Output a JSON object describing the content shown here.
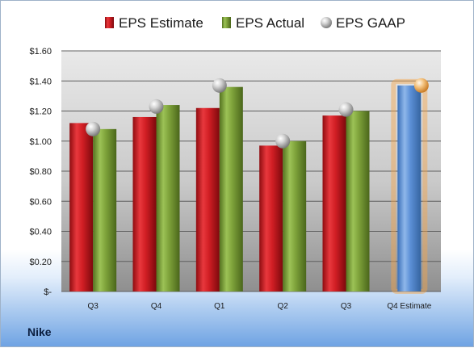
{
  "company": "Nike",
  "chart_data": {
    "type": "bar",
    "categories": [
      "Q3",
      "Q4",
      "Q1",
      "Q2",
      "Q3",
      "Q4 Estimate"
    ],
    "series": [
      {
        "name": "EPS Estimate",
        "color": "#c8161d",
        "values": [
          1.12,
          1.16,
          1.22,
          0.97,
          1.17,
          null
        ]
      },
      {
        "name": "EPS Actual",
        "color": "#7ea23a",
        "values": [
          1.08,
          1.24,
          1.36,
          1.0,
          1.2,
          null
        ]
      },
      {
        "name": "EPS GAAP",
        "color": "#b0b0b0",
        "marker": "sphere",
        "values": [
          1.08,
          1.23,
          1.37,
          1.0,
          1.21,
          1.37
        ]
      }
    ],
    "estimate_bar": {
      "category": "Q4 Estimate",
      "value": 1.37,
      "color": "#5b8fd6",
      "glow": "#f5a34a"
    },
    "ylim": [
      0,
      1.6
    ],
    "yticks": [
      0,
      0.2,
      0.4,
      0.6,
      0.8,
      1.0,
      1.2,
      1.4,
      1.6
    ],
    "ytick_labels": [
      "$-",
      "$0.20",
      "$0.40",
      "$0.60",
      "$0.80",
      "$1.00",
      "$1.20",
      "$1.40",
      "$1.60"
    ],
    "grid": true,
    "legend_position": "top"
  }
}
